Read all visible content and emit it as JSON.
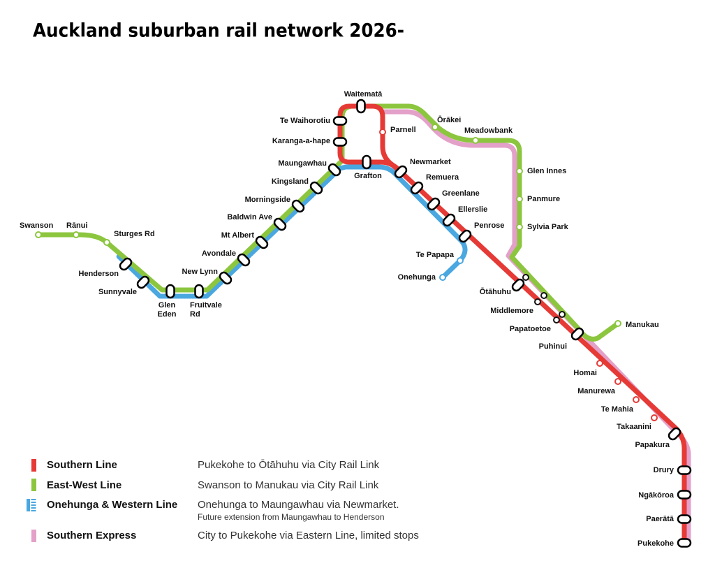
{
  "title": "Auckland suburban rail network 2026-",
  "stations": [
    "Swanson",
    "Rānui",
    "Sturges Rd",
    "Henderson",
    "Sunnyvale",
    [
      "Glen",
      "Eden"
    ],
    [
      "Fruitvale",
      "Rd"
    ],
    "New Lynn",
    "Avondale",
    "Mt Albert",
    "Baldwin Ave",
    "Morningside",
    "Kingsland",
    "Maungawhau",
    "Karanga-a-hape",
    "Te Waihorotiu",
    "Waitematā",
    "Parnell",
    "Grafton",
    "Newmarket",
    "Remuera",
    "Greenlane",
    "Ellerslie",
    "Penrose",
    "Te Papapa",
    "Onehunga",
    "Ōrākei",
    "Meadowbank",
    "Glen Innes",
    "Panmure",
    "Sylvia Park",
    "Ōtāhuhu",
    "Middlemore",
    "Papatoetoe",
    "Puhinui",
    "Manukau",
    "Homai",
    "Manurewa",
    "Te Mahia",
    "Takaanini",
    "Papakura",
    "Drury",
    "Ngākōroa",
    "Paerātā",
    "Pukekohe"
  ],
  "legend": [
    {
      "name": "Southern Line",
      "description": "Pukekohe to Ōtāhuhu via City Rail Link"
    },
    {
      "name": "East-West Line",
      "description": "Swanson to Manukau via City Rail Link"
    },
    {
      "name": "Onehunga & Western Line",
      "description": "Onehunga to Maungawhau via Newmarket.",
      "note": "Future extension from Maungawhau to Henderson"
    },
    {
      "name": "Southern Express",
      "description": "City to Pukekohe via Eastern Line, limited stops"
    }
  ]
}
